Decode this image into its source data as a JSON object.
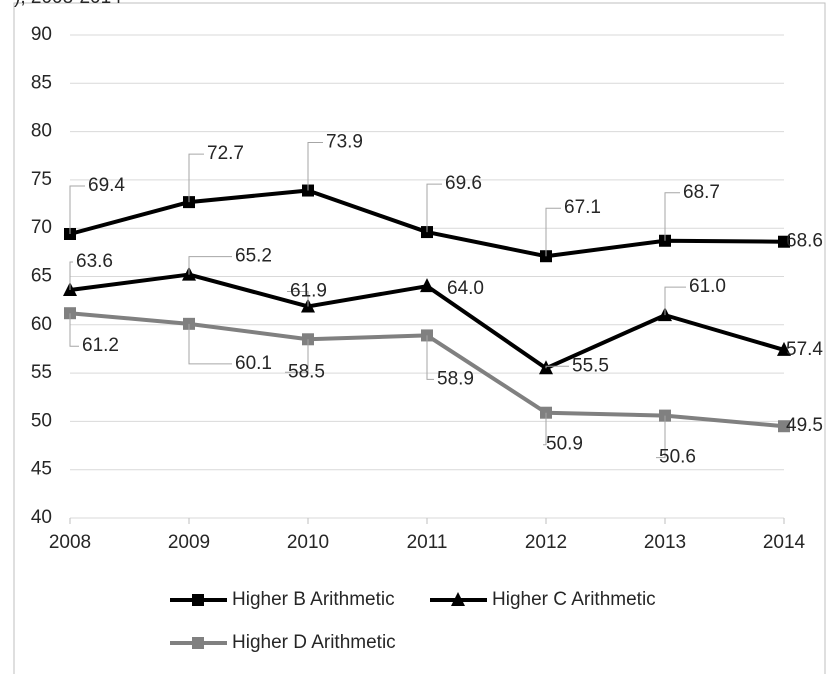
{
  "chart_data": {
    "type": "line",
    "title": "), 2008-2014",
    "categories": [
      "2008",
      "2009",
      "2010",
      "2011",
      "2012",
      "2013",
      "2014"
    ],
    "series": [
      {
        "name": "Higher B Arithmetic",
        "color": "#000000",
        "marker": "square",
        "values": [
          69.4,
          72.7,
          73.9,
          69.6,
          67.1,
          68.7,
          68.6
        ],
        "value_labels": [
          "69.4",
          "72.7",
          "73.9",
          "69.6",
          "67.1",
          "68.7",
          "68.6"
        ]
      },
      {
        "name": "Higher C Arithmetic",
        "color": "#000000",
        "marker": "triangle",
        "values": [
          63.6,
          65.2,
          61.9,
          64.0,
          55.5,
          61.0,
          57.4
        ],
        "value_labels": [
          "63.6",
          "65.2",
          "61.9",
          "64.0",
          "55.5",
          "61.0",
          "57.4"
        ]
      },
      {
        "name": "Higher D Arithmetic",
        "color": "#808080",
        "marker": "square",
        "values": [
          61.2,
          60.1,
          58.5,
          58.9,
          50.9,
          50.6,
          49.5
        ],
        "value_labels": [
          "61.2",
          "60.1",
          "58.5",
          "58.9",
          "50.9",
          "50.6",
          "49.5"
        ]
      }
    ],
    "ylim": [
      40,
      90
    ],
    "yticks": [
      40,
      45,
      50,
      55,
      60,
      65,
      70,
      75,
      80,
      85,
      90
    ],
    "grid": true
  }
}
